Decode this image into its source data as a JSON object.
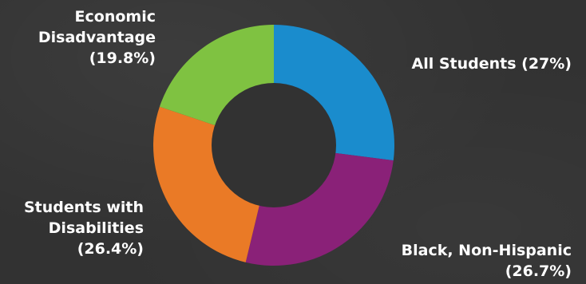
{
  "chart_data": {
    "type": "pie",
    "variant": "donut",
    "title": "",
    "categories": [
      "All Students",
      "Black, Non-Hispanic",
      "Students with Disabilities",
      "Economic Disadvantage"
    ],
    "values": [
      27,
      26.7,
      26.4,
      19.8
    ],
    "colors": [
      "#1a8ccd",
      "#8a2178",
      "#ea7a26",
      "#7fc241"
    ],
    "labels": [
      [
        "All Students (27%)"
      ],
      [
        "Black, Non-Hispanic",
        "(26.7%)"
      ],
      [
        "Students with",
        "Disabilities",
        "(26.4%)"
      ],
      [
        "Economic",
        "Disadvantage",
        "(19.8%)"
      ]
    ],
    "legend": "none"
  }
}
